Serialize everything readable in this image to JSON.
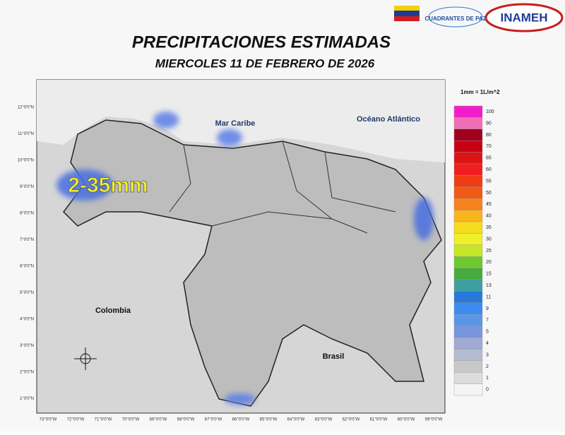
{
  "header": {
    "title": "PRECIPITACIONES ESTIMADAS",
    "subtitle": "MIERCOLES 11 DE FEBRERO DE 2026",
    "logo_text": "INAMEH",
    "logo2_text": "CUADRANTES DE PAZ"
  },
  "map": {
    "labels": {
      "sea": "Mar Caribe",
      "ocean": "Océano Atlántico",
      "west": "Colombia",
      "south": "Brasil",
      "rain": "2-35mm"
    },
    "lat_labels": [
      "12°0'0\"N",
      "11°0'0\"N",
      "10°0'0\"N",
      "9°0'0\"N",
      "8°0'0\"N",
      "7°0'0\"N",
      "6°0'0\"N",
      "5°0'0\"N",
      "4°0'0\"N",
      "3°0'0\"N",
      "2°0'0\"N",
      "1°0'0\"N"
    ],
    "lon_labels": [
      "73°0'0\"W",
      "72°0'0\"W",
      "71°0'0\"W",
      "70°0'0\"W",
      "69°0'0\"W",
      "68°0'0\"W",
      "67°0'0\"W",
      "66°0'0\"W",
      "65°0'0\"W",
      "64°0'0\"W",
      "63°0'0\"W",
      "62°0'0\"W",
      "61°0'0\"W",
      "60°0'0\"W",
      "59°0'0\"W"
    ]
  },
  "legend": {
    "unit": "1mm = 1L/m^2",
    "levels": [
      100,
      90,
      80,
      70,
      65,
      60,
      55,
      50,
      45,
      40,
      35,
      30,
      25,
      20,
      15,
      13,
      11,
      9,
      7,
      5,
      4,
      3,
      2,
      1,
      0
    ],
    "colors": [
      "#f01ec8",
      "#f06eb4",
      "#a0001e",
      "#c80014",
      "#dc1414",
      "#f01e1e",
      "#f03c14",
      "#f05a14",
      "#f5821e",
      "#fab41e",
      "#f5dc1e",
      "#f0f028",
      "#c8e628",
      "#6ec832",
      "#46aa3c",
      "#3ca0a0",
      "#2878dc",
      "#3c8cf0",
      "#5a96e6",
      "#7896dc",
      "#a0aad2",
      "#b4bcd0",
      "#c8c8c8",
      "#dcdcdc",
      "#f5f5f5"
    ]
  }
}
